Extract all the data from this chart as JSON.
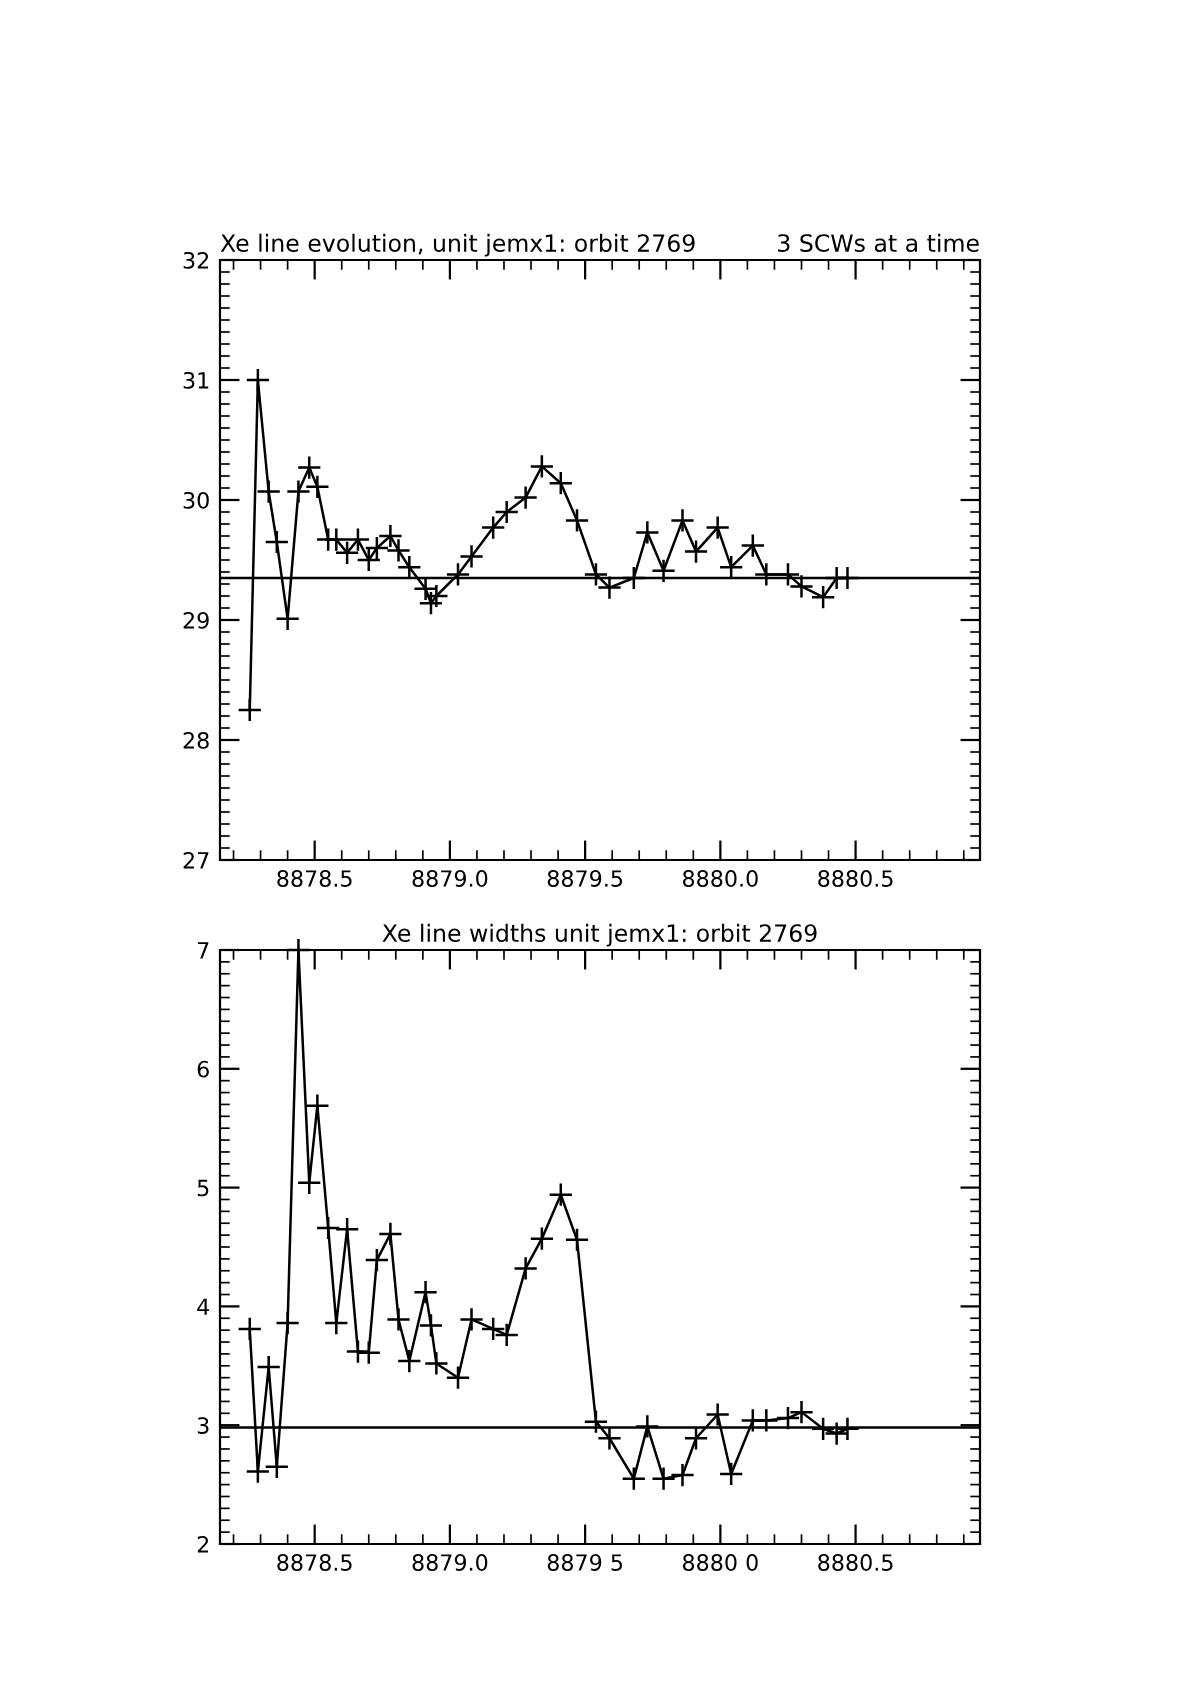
{
  "chart_data": [
    {
      "type": "line",
      "title": "Xe line evolution, unit jemx1: orbit 2769",
      "subtitle": "3 SCWs at a time",
      "marker": "cross",
      "line_style": "solid",
      "grid": false,
      "legend": false,
      "x": [
        8878.26,
        8878.29,
        8878.33,
        8878.36,
        8878.4,
        8878.44,
        8878.48,
        8878.51,
        8878.55,
        8878.58,
        8878.62,
        8878.66,
        8878.7,
        8878.73,
        8878.78,
        8878.81,
        8878.85,
        8878.91,
        8878.93,
        8878.95,
        8879.03,
        8879.08,
        8879.16,
        8879.21,
        8879.28,
        8879.34,
        8879.41,
        8879.47,
        8879.54,
        8879.59,
        8879.68,
        8879.73,
        8879.79,
        8879.86,
        8879.91,
        8879.99,
        8880.04,
        8880.12,
        8880.17,
        8880.25,
        8880.3,
        8880.38,
        8880.43,
        8880.47
      ],
      "series": [
        {
          "color": "#000000",
          "values": [
            28.25,
            31.0,
            30.07,
            29.65,
            29.01,
            30.07,
            30.27,
            30.11,
            29.67,
            29.67,
            29.56,
            29.67,
            29.5,
            29.6,
            29.7,
            29.58,
            29.44,
            29.26,
            29.14,
            29.2,
            29.38,
            29.53,
            29.77,
            29.9,
            30.02,
            30.28,
            30.14,
            29.83,
            29.38,
            29.27,
            29.35,
            29.73,
            29.41,
            29.83,
            29.57,
            29.77,
            29.44,
            29.62,
            29.38,
            29.38,
            29.28,
            29.19,
            29.35,
            29.35
          ]
        }
      ],
      "ref_lines": [
        {
          "axis": "y",
          "value": 29.35,
          "color": "#000000"
        }
      ],
      "xlim": [
        8878.15,
        8880.96
      ],
      "xticks": [
        {
          "value": 8878.5,
          "label": "8878.5"
        },
        {
          "value": 8879.0,
          "label": "8879.0"
        },
        {
          "value": 8879.5,
          "label": "8879.5"
        },
        {
          "value": 8880.0,
          "label": "8880.0"
        },
        {
          "value": 8880.5,
          "label": "8880.5"
        }
      ],
      "ylim": [
        27,
        32
      ],
      "yticks": [
        27,
        28,
        29,
        30,
        31,
        32
      ]
    },
    {
      "type": "line",
      "title": "Xe line widths unit jemx1: orbit 2769",
      "marker": "cross",
      "line_style": "solid",
      "grid": false,
      "legend": false,
      "x": [
        8878.26,
        8878.29,
        8878.33,
        8878.36,
        8878.4,
        8878.44,
        8878.48,
        8878.51,
        8878.55,
        8878.58,
        8878.62,
        8878.66,
        8878.7,
        8878.73,
        8878.78,
        8878.81,
        8878.85,
        8878.91,
        8878.93,
        8878.95,
        8879.03,
        8879.08,
        8879.16,
        8879.21,
        8879.28,
        8879.34,
        8879.41,
        8879.47,
        8879.54,
        8879.59,
        8879.68,
        8879.73,
        8879.79,
        8879.86,
        8879.91,
        8879.99,
        8880.04,
        8880.12,
        8880.17,
        8880.25,
        8880.3,
        8880.38,
        8880.43,
        8880.47
      ],
      "series": [
        {
          "color": "#000000",
          "values": [
            3.81,
            2.61,
            3.49,
            2.65,
            3.86,
            7.0,
            5.04,
            5.69,
            4.66,
            3.86,
            4.65,
            3.62,
            3.61,
            4.39,
            4.61,
            3.89,
            3.54,
            4.12,
            3.84,
            3.52,
            3.4,
            3.89,
            3.81,
            3.76,
            4.32,
            4.57,
            4.94,
            4.56,
            3.03,
            2.89,
            2.55,
            2.99,
            2.55,
            2.58,
            2.89,
            3.09,
            2.59,
            3.04,
            3.04,
            3.06,
            3.11,
            2.97,
            2.93,
            2.97
          ]
        }
      ],
      "ref_lines": [
        {
          "axis": "y",
          "value": 2.98,
          "color": "#000000"
        }
      ],
      "xlim": [
        8878.15,
        8880.96
      ],
      "xticks": [
        {
          "value": 8878.5,
          "label": "8878.5"
        },
        {
          "value": 8879.0,
          "label": "8879.0"
        },
        {
          "value": 8879.5,
          "label": "8879 5"
        },
        {
          "value": 8880.0,
          "label": "8880 0"
        },
        {
          "value": 8880.5,
          "label": "8880.5"
        }
      ],
      "ylim": [
        2,
        7
      ],
      "yticks": [
        2,
        3,
        4,
        5,
        6,
        7
      ]
    }
  ]
}
